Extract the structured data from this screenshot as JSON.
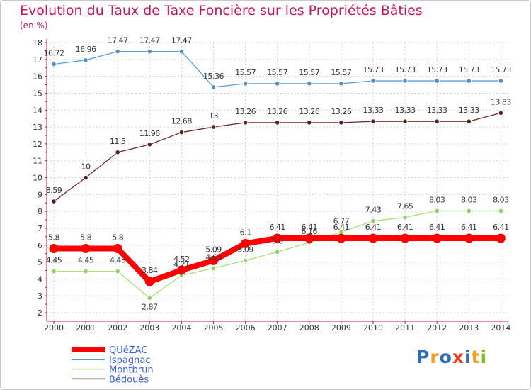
{
  "chart_data": {
    "type": "line",
    "title": "Evolution du Taux de Taxe Foncière sur les Propriétés Bâties",
    "ylabel": "(en %)",
    "xlabel": "",
    "categories": [
      "2000",
      "2001",
      "2002",
      "2003",
      "2004",
      "2005",
      "2006",
      "2007",
      "2008",
      "2009",
      "2010",
      "2011",
      "2012",
      "2013",
      "2014"
    ],
    "yticks": [
      2,
      3,
      4,
      5,
      6,
      7,
      8,
      9,
      10,
      11,
      12,
      13,
      14,
      15,
      16,
      17,
      18
    ],
    "ylim": [
      2,
      18
    ],
    "grid": true,
    "series": [
      {
        "name": "Ispagnac",
        "color": "#5b9bd5",
        "marker": "#4f8fc9",
        "values": [
          16.72,
          16.96,
          17.47,
          17.47,
          17.47,
          15.36,
          15.57,
          15.57,
          15.57,
          15.57,
          15.73,
          15.73,
          15.73,
          15.73,
          15.73
        ],
        "labels": [
          "16.72",
          "16.96",
          "17.47",
          "17.47",
          "17.47",
          "15.36",
          "15.57",
          "15.57",
          "15.57",
          "15.57",
          "15.73",
          "15.73",
          "15.73",
          "15.73",
          "15.73"
        ]
      },
      {
        "name": "Bédouès",
        "color": "#6d2a2a",
        "marker": "#5c1f1f",
        "values": [
          8.59,
          10,
          11.5,
          11.96,
          12.68,
          13,
          13.26,
          13.26,
          13.26,
          13.26,
          13.33,
          13.33,
          13.33,
          13.33,
          13.83
        ],
        "labels": [
          "8.59",
          "10",
          "11.5",
          "11.96",
          "12.68",
          "13",
          "13.26",
          "13.26",
          "13.26",
          "13.26",
          "13.33",
          "13.33",
          "13.33",
          "13.33",
          "13.83"
        ]
      },
      {
        "name": "Montbrun",
        "color": "#a8e07e",
        "marker": "#8dd35f",
        "values": [
          4.45,
          4.45,
          4.45,
          2.87,
          4.21,
          4.63,
          5.09,
          5.6,
          6.16,
          6.77,
          7.43,
          7.65,
          8.03,
          8.03,
          8.03
        ],
        "labels": [
          "4.45",
          "4.45",
          "4.45",
          "2.87",
          "4.21",
          "4.63",
          "5.09",
          "5.6",
          "6.16",
          "6.77",
          "7.43",
          "7.65",
          "8.03",
          "8.03",
          "8.03"
        ]
      },
      {
        "name": "QUéZAC",
        "color": "#ff0000",
        "marker": "#ff0000",
        "values": [
          5.8,
          5.8,
          5.8,
          3.84,
          4.52,
          5.09,
          6.1,
          6.41,
          6.41,
          6.41,
          6.41,
          6.41,
          6.41,
          6.41,
          6.41
        ],
        "labels": [
          "5.8",
          "5.8",
          "5.8",
          "3.84",
          "4.52",
          "5.09",
          "6.1",
          "6.41",
          "6.41",
          "6.41",
          "6.41",
          "6.41",
          "6.41",
          "6.41",
          "6.41"
        ]
      }
    ],
    "legend": {
      "position": "bottom-left",
      "order": [
        "QUéZAC",
        "Ispagnac",
        "Montbrun",
        "Bédouès"
      ]
    }
  },
  "logo": {
    "text": "Proxiti",
    "letters": [
      "P",
      "r",
      "o",
      "x",
      "i",
      "t",
      "i"
    ],
    "colors": [
      "#2f6db8",
      "#f0a020",
      "#2f6db8",
      "#e8401c",
      "#2f6db8",
      "#f0a020",
      "#7cbf2a"
    ]
  }
}
